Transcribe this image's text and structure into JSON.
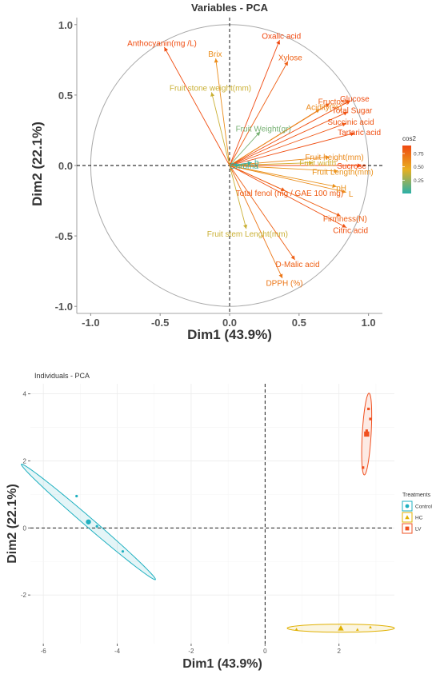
{
  "colors": {
    "low": "#2ab0a8",
    "mid": "#e8b020",
    "high": "#f04810",
    "circle": "#a8a8a8",
    "control": "#1fb0c0",
    "hc": "#e0b000",
    "lv": "#f05020",
    "axis_text": "#333333",
    "tick_text": "#555555"
  },
  "chart_data": [
    {
      "type": "scatter",
      "title": "Variables - PCA",
      "xlabel": "Dim1 (43.9%)",
      "ylabel": "Dim2 (22.1%)",
      "xlim": [
        -1.1,
        1.1
      ],
      "ylim": [
        -1.05,
        1.05
      ],
      "x_ticks": [
        -1.0,
        -0.5,
        0.0,
        0.5,
        1.0
      ],
      "y_ticks": [
        -1.0,
        -0.5,
        0.0,
        0.5,
        1.0
      ],
      "x_tick_labels": [
        "-1.0",
        "-0.5",
        "0.0",
        "0.5",
        "1.0"
      ],
      "y_tick_labels": [
        "-1.0",
        "-0.5",
        "0.0",
        "0.5",
        "1.0"
      ],
      "grid": false,
      "correlation_circle": true,
      "legend": {
        "title": "cos2",
        "placement": "right",
        "range": [
          0.0,
          0.9
        ],
        "tick_values": [
          0.25,
          0.5,
          0.75
        ],
        "tick_labels": [
          "0.25",
          "0.50",
          "0.75"
        ]
      },
      "variables": [
        {
          "name": "Anthocyanin(mg /L)",
          "x": -0.47,
          "y": 0.84,
          "cos2": 0.88
        },
        {
          "name": "Oxalic acid",
          "x": 0.36,
          "y": 0.89,
          "cos2": 0.9
        },
        {
          "name": "Xylose",
          "x": 0.42,
          "y": 0.74,
          "cos2": 0.8
        },
        {
          "name": "Brix",
          "x": -0.1,
          "y": 0.76,
          "cos2": 0.6
        },
        {
          "name": "Fruit stone weight(mm)",
          "x": -0.13,
          "y": 0.52,
          "cos2": 0.38
        },
        {
          "name": "Fructose",
          "x": 0.72,
          "y": 0.44,
          "cos2": 0.8
        },
        {
          "name": "Glucose",
          "x": 0.87,
          "y": 0.46,
          "cos2": 0.88
        },
        {
          "name": "Acidity(%)",
          "x": 0.65,
          "y": 0.4,
          "cos2": 0.62
        },
        {
          "name": "Total Sugar",
          "x": 0.85,
          "y": 0.38,
          "cos2": 0.86
        },
        {
          "name": "Fruit Weight(gr)",
          "x": 0.22,
          "y": 0.24,
          "cos2": 0.18
        },
        {
          "name": "Succinic acid",
          "x": 0.84,
          "y": 0.3,
          "cos2": 0.85
        },
        {
          "name": "Tartaric acid",
          "x": 0.9,
          "y": 0.23,
          "cos2": 0.88
        },
        {
          "name": "Fruit height(mm)",
          "x": 0.72,
          "y": 0.06,
          "cos2": 0.62
        },
        {
          "name": "Sucrose",
          "x": 0.95,
          "y": 0.0,
          "cos2": 0.9
        },
        {
          "name": "Fruit Length(mm)",
          "x": 0.78,
          "y": -0.04,
          "cos2": 0.58
        },
        {
          "name": "Fruit width",
          "x": 0.6,
          "y": 0.02,
          "cos2": 0.4
        },
        {
          "name": "b",
          "x": 0.16,
          "y": 0.02,
          "cos2": 0.05
        },
        {
          "name": "Chroma",
          "x": 0.07,
          "y": 0.0,
          "cos2": 0.02
        },
        {
          "name": "pH",
          "x": 0.77,
          "y": -0.15,
          "cos2": 0.58
        },
        {
          "name": "L",
          "x": 0.84,
          "y": -0.19,
          "cos2": 0.6
        },
        {
          "name": "Total fenol (mg / GAE 100 mg)",
          "x": 0.4,
          "y": -0.18,
          "cos2": 0.82
        },
        {
          "name": "Firmness(N)",
          "x": 0.8,
          "y": -0.36,
          "cos2": 0.8
        },
        {
          "name": "Citric acid",
          "x": 0.84,
          "y": -0.44,
          "cos2": 0.86
        },
        {
          "name": "Fruit stem Lenght(mm)",
          "x": 0.12,
          "y": -0.45,
          "cos2": 0.38
        },
        {
          "name": "D-Malic acid",
          "x": 0.47,
          "y": -0.67,
          "cos2": 0.8
        },
        {
          "name": "DPPH (%)",
          "x": 0.38,
          "y": -0.8,
          "cos2": 0.7
        }
      ]
    },
    {
      "type": "scatter",
      "title": "Individuals - PCA",
      "xlabel": "Dim1 (43.9%)",
      "ylabel": "Dim2 (22.1%)",
      "xlim": [
        -6.35,
        3.5
      ],
      "ylim": [
        -3.45,
        4.3
      ],
      "x_ticks": [
        -6,
        -4,
        -2,
        0,
        2
      ],
      "y_ticks": [
        -2,
        0,
        2,
        4
      ],
      "x_tick_labels": [
        "-6",
        "-4",
        "-2",
        "0",
        "2"
      ],
      "y_tick_labels": [
        "-2",
        "0",
        "2",
        "4"
      ],
      "grid": true,
      "legend": {
        "title": "Treatments",
        "placement": "right"
      },
      "series": [
        {
          "name": "Control",
          "shape": "circle",
          "points": [
            [
              -5.1,
              0.95
            ],
            [
              -4.75,
              0.2
            ],
            [
              -4.55,
              0.05
            ],
            [
              -3.85,
              -0.7
            ]
          ],
          "mean": [
            -4.78,
            0.18
          ],
          "ellipse": {
            "angle_deg": -43.5,
            "semi_major": 2.5,
            "semi_minor": 0.13
          }
        },
        {
          "name": "HC",
          "shape": "triangle",
          "points": [
            [
              0.85,
              -3.02
            ],
            [
              2.05,
              -3.0
            ],
            [
              2.5,
              -3.03
            ],
            [
              2.85,
              -2.96
            ]
          ],
          "mean": [
            2.05,
            -2.99
          ],
          "ellipse": {
            "angle_deg": 0,
            "semi_major": 1.45,
            "semi_minor": 0.12
          }
        },
        {
          "name": "LV",
          "shape": "square",
          "points": [
            [
              2.65,
              1.8
            ],
            [
              2.75,
              2.9
            ],
            [
              2.85,
              3.25
            ],
            [
              2.8,
              3.55
            ]
          ],
          "mean": [
            2.75,
            2.8
          ],
          "ellipse": {
            "angle_deg": 87,
            "semi_major": 1.22,
            "semi_minor": 0.12
          }
        }
      ]
    }
  ]
}
